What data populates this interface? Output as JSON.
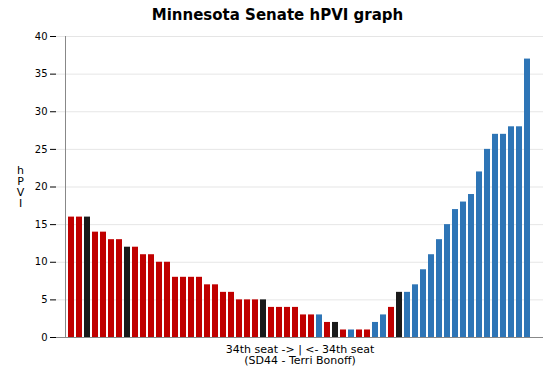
{
  "chart_data": {
    "type": "bar",
    "title": "Minnesota Senate hPVI graph",
    "ylabel": "h\nP\nV\nI",
    "xlabel": "34th seat -> | <- 34th seat\n(SD44 - Terri Bonoff)",
    "categories": [
      null,
      null,
      null,
      null,
      null,
      null,
      null,
      null,
      null,
      null,
      null,
      null,
      null,
      null,
      null,
      null,
      null,
      null,
      null,
      null,
      null,
      null,
      null,
      null,
      null,
      null,
      null,
      null,
      null,
      null,
      null,
      null,
      null,
      null,
      null,
      null,
      null,
      null,
      null,
      null,
      null,
      null,
      null,
      null,
      null,
      null,
      null,
      null,
      null,
      null,
      null,
      null,
      null,
      null,
      null,
      null,
      null,
      null
    ],
    "values": [
      16,
      16,
      16,
      14,
      14,
      13,
      13,
      12,
      12,
      11,
      11,
      10,
      10,
      8,
      8,
      8,
      8,
      7,
      7,
      6,
      6,
      5,
      5,
      5,
      5,
      4,
      4,
      4,
      4,
      3,
      3,
      3,
      2,
      2,
      1,
      1,
      1,
      1,
      2,
      3,
      4,
      6,
      6,
      7,
      9,
      11,
      13,
      15,
      17,
      18,
      19,
      22,
      25,
      27,
      27,
      28,
      28,
      37
    ],
    "colors": [
      "#c00000",
      "#c00000",
      "#1a1a1a",
      "#c00000",
      "#c00000",
      "#c00000",
      "#c00000",
      "#1a1a1a",
      "#c00000",
      "#c00000",
      "#c00000",
      "#c00000",
      "#c00000",
      "#c00000",
      "#c00000",
      "#c00000",
      "#c00000",
      "#c00000",
      "#c00000",
      "#c00000",
      "#c00000",
      "#c00000",
      "#c00000",
      "#c00000",
      "#1a1a1a",
      "#c00000",
      "#c00000",
      "#c00000",
      "#c00000",
      "#c00000",
      "#c00000",
      "#2e75b6",
      "#c00000",
      "#1a1a1a",
      "#c00000",
      "#2e75b6",
      "#c00000",
      "#c00000",
      "#2e75b6",
      "#2e75b6",
      "#c00000",
      "#1a1a1a",
      "#2e75b6",
      "#2e75b6",
      "#2e75b6",
      "#2e75b6",
      "#2e75b6",
      "#2e75b6",
      "#2e75b6",
      "#2e75b6",
      "#2e75b6",
      "#2e75b6",
      "#2e75b6",
      "#2e75b6",
      "#2e75b6",
      "#2e75b6",
      "#2e75b6",
      "#2e75b6"
    ],
    "ylim": [
      0,
      40
    ],
    "yticks": [
      0,
      5,
      10,
      15,
      20,
      25,
      30,
      35,
      40
    ],
    "grid": true,
    "tick_labels": "y"
  }
}
